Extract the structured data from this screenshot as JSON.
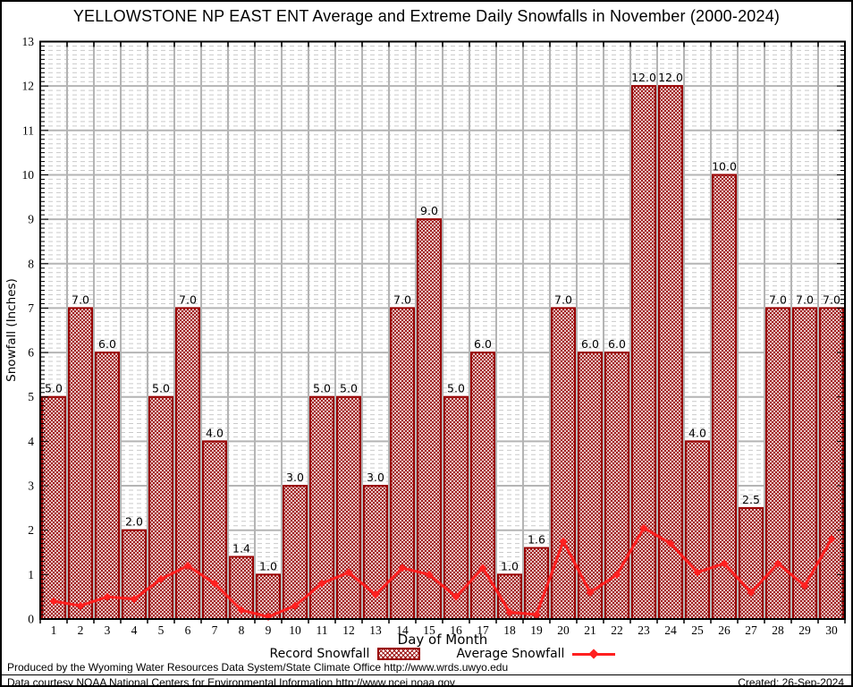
{
  "chart_data": {
    "type": "bar",
    "title": "YELLOWSTONE NP EAST ENT Average and Extreme Daily Snowfalls in November (2000-2024)",
    "xlabel": "Day of Month",
    "ylabel": "Snowfall (Inches)",
    "ylim": [
      0,
      13
    ],
    "ytick_step": 1,
    "grid": {
      "major": "solid",
      "minor": "dashed",
      "minor_step": 0.1
    },
    "legend_position": "bottom-center",
    "categories": [
      1,
      2,
      3,
      4,
      5,
      6,
      7,
      8,
      9,
      10,
      11,
      12,
      13,
      14,
      15,
      16,
      17,
      18,
      19,
      20,
      21,
      22,
      23,
      24,
      25,
      26,
      27,
      28,
      29,
      30
    ],
    "series": [
      {
        "name": "Record Snowfall",
        "type": "bar",
        "values": [
          5.0,
          7.0,
          6.0,
          2.0,
          5.0,
          7.0,
          4.0,
          1.4,
          1.0,
          3.0,
          5.0,
          5.0,
          3.0,
          7.0,
          9.0,
          5.0,
          6.0,
          1.0,
          1.6,
          7.0,
          6.0,
          6.0,
          12.0,
          12.0,
          4.0,
          10.0,
          2.5,
          7.0,
          7.0,
          7.0
        ],
        "labels": [
          "5.0",
          "7.0",
          "6.0",
          "2.0",
          "5.0",
          "7.0",
          "4.0",
          "1.4",
          "1.0",
          "3.0",
          "5.0",
          "5.0",
          "3.0",
          "7.0",
          "9.0",
          "5.0",
          "6.0",
          "1.0",
          "1.6",
          "7.0",
          "6.0",
          "6.0",
          "12.0",
          "12.0",
          "4.0",
          "10.0",
          "2.5",
          "7.0",
          "7.0",
          "7.0"
        ]
      },
      {
        "name": "Average Snowfall",
        "type": "line",
        "values": [
          0.4,
          0.3,
          0.5,
          0.45,
          0.9,
          1.2,
          0.8,
          0.2,
          0.05,
          0.3,
          0.8,
          1.05,
          0.55,
          1.15,
          1.0,
          0.5,
          1.15,
          0.15,
          0.1,
          1.75,
          0.6,
          1.0,
          2.05,
          1.7,
          1.05,
          1.25,
          0.6,
          1.25,
          0.75,
          1.8
        ]
      }
    ],
    "colors": {
      "bar_outline": "#990000",
      "bar_hatch": "#9b1010",
      "line": "#ff2020",
      "grid_major": "#b4b4b4",
      "grid_minor": "#c9c9c9"
    }
  },
  "footer": {
    "produced_by": "Produced by the Wyoming Water Resources Data System/State Climate Office http://www.wrds.uwyo.edu",
    "data_courtesy": "Data courtesy NOAA National Centers for Environmental Information http://www.ncei.noaa.gov",
    "created": "Created: 26-Sep-2024"
  }
}
